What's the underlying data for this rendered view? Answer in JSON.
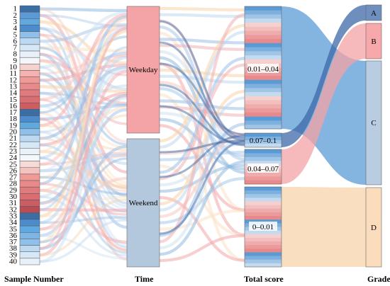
{
  "diagram": {
    "type": "sankey",
    "columns": [
      "Sample Number",
      "Time",
      "Total score",
      "Grade"
    ],
    "samples": [
      "1",
      "2",
      "3",
      "4",
      "5",
      "6",
      "7",
      "8",
      "9",
      "10",
      "11",
      "12",
      "13",
      "14",
      "15",
      "16",
      "17",
      "18",
      "19",
      "20",
      "21",
      "22",
      "23",
      "24",
      "25",
      "26",
      "27",
      "28",
      "29",
      "30",
      "31",
      "32",
      "33",
      "34",
      "35",
      "36",
      "37",
      "38",
      "39",
      "40"
    ],
    "time_nodes": [
      "Weekday",
      "Weekend"
    ],
    "score_nodes": [
      "0.01–0.04",
      "0.07–0.1",
      "0.04–0.07",
      "0–0.01"
    ],
    "grade_nodes": [
      "A",
      "B",
      "C",
      "D"
    ]
  },
  "colors": {
    "blue": "#5b9bd5",
    "pink": "#f4a0a0",
    "peach": "#f7d5ae",
    "light_blue": "#a9c6e8",
    "dark_blue": "#3d6aa8"
  }
}
